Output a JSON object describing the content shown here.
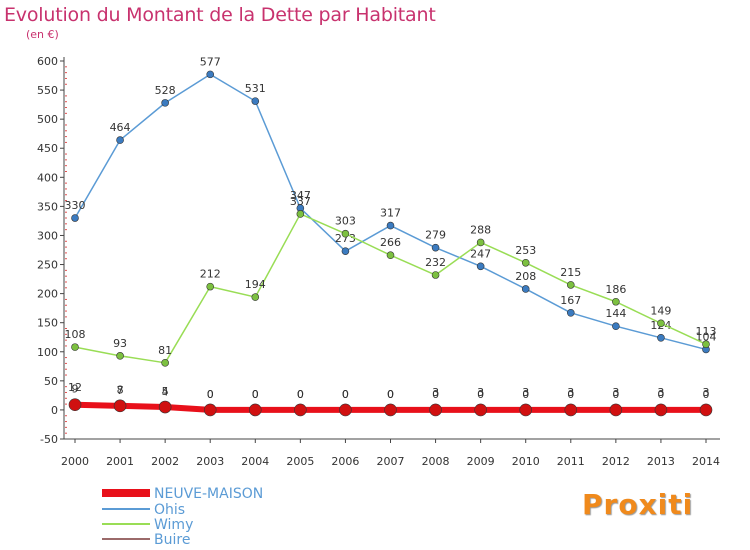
{
  "chart_data": {
    "type": "line",
    "title": "Evolution du Montant de la Dette par Habitant",
    "subtitle": "(en €)",
    "categories": [
      "2000",
      "2001",
      "2002",
      "2003",
      "2004",
      "2005",
      "2006",
      "2007",
      "2008",
      "2009",
      "2010",
      "2011",
      "2012",
      "2013",
      "2014"
    ],
    "ylim": [
      -50,
      600
    ],
    "yticks": [
      -50,
      0,
      50,
      100,
      150,
      200,
      250,
      300,
      350,
      400,
      450,
      500,
      550,
      600
    ],
    "grid": false,
    "legend_position": "bottom-left",
    "series": [
      {
        "name": "NEUVE-MAISON",
        "color": "#e8101a",
        "values": [
          9,
          7,
          5,
          0,
          0,
          0,
          0,
          0,
          0,
          0,
          0,
          0,
          0,
          0,
          0
        ]
      },
      {
        "name": "Ohis",
        "color": "#5b9bd5",
        "values": [
          330,
          464,
          528,
          577,
          531,
          347,
          273,
          317,
          279,
          247,
          208,
          167,
          144,
          124,
          104
        ]
      },
      {
        "name": "Wimy",
        "color": "#99dd55",
        "values": [
          108,
          93,
          81,
          212,
          194,
          337,
          303,
          266,
          232,
          288,
          253,
          215,
          186,
          149,
          113
        ]
      },
      {
        "name": "Buire",
        "color": "#9b6a6a",
        "values": [
          12,
          8,
          4,
          0,
          0,
          0,
          0,
          0,
          3,
          3,
          3,
          3,
          3,
          3,
          3
        ]
      }
    ]
  },
  "logo": {
    "text": "Proxiti"
  }
}
